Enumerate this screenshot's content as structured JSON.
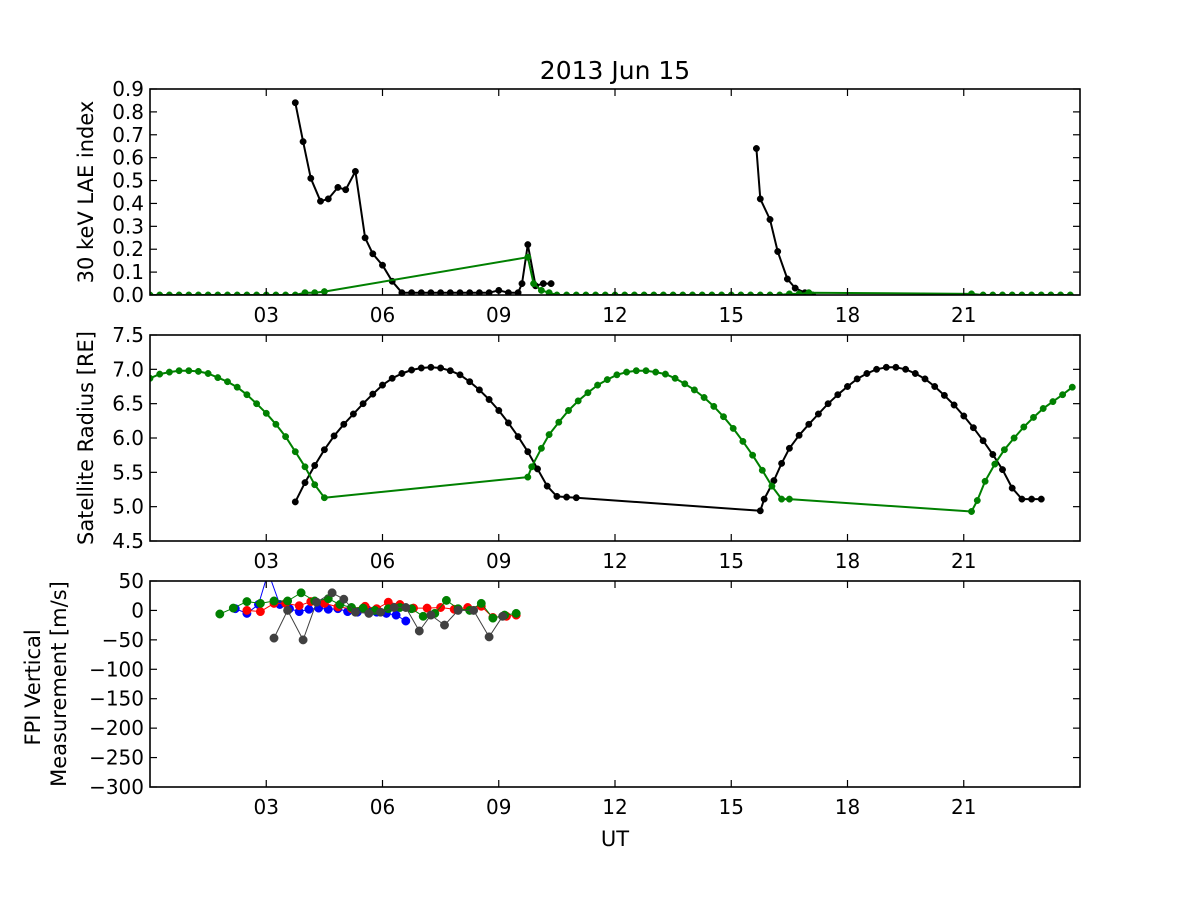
{
  "chart_data": [
    {
      "type": "line",
      "title": "2013 Jun 15",
      "xlabel": "",
      "ylabel": "30 keV LAE index",
      "xlim": [
        0,
        24
      ],
      "ylim": [
        0.0,
        0.9
      ],
      "xticks": [
        3,
        6,
        9,
        12,
        15,
        18,
        21
      ],
      "xtick_labels": [
        "03",
        "06",
        "09",
        "12",
        "15",
        "18",
        "21"
      ],
      "yticks": [
        0.0,
        0.1,
        0.2,
        0.3,
        0.4,
        0.5,
        0.6,
        0.7,
        0.8,
        0.9
      ],
      "ytick_labels": [
        "0.0",
        "0.1",
        "0.2",
        "0.3",
        "0.4",
        "0.5",
        "0.6",
        "0.7",
        "0.8",
        "0.9"
      ],
      "grid": false,
      "series": [
        {
          "color": "#000000",
          "segments": [
            {
              "x": [
                3.75,
                3.95,
                4.15,
                4.4,
                4.6,
                4.85,
                5.05,
                5.3,
                5.55,
                5.75,
                6.0,
                6.25,
                6.5,
                6.75,
                7.0,
                7.25,
                7.5,
                7.75,
                8.0,
                8.25,
                8.5,
                8.75,
                9.0,
                9.25,
                9.5,
                9.6,
                9.75,
                9.95,
                10.15,
                10.35
              ],
              "y": [
                0.84,
                0.67,
                0.51,
                0.41,
                0.42,
                0.47,
                0.46,
                0.54,
                0.25,
                0.18,
                0.13,
                0.06,
                0.01,
                0.01,
                0.01,
                0.01,
                0.01,
                0.01,
                0.01,
                0.01,
                0.01,
                0.01,
                0.02,
                0.01,
                0.01,
                0.05,
                0.22,
                0.04,
                0.05,
                0.05
              ]
            },
            {
              "x": [
                15.65,
                15.75,
                16.0,
                16.2,
                16.45,
                16.65,
                16.9,
                17.1
              ],
              "y": [
                0.64,
                0.42,
                0.33,
                0.19,
                0.07,
                0.03,
                0.01,
                0.0
              ]
            }
          ]
        },
        {
          "color": "#008000",
          "segments": [
            {
              "x": [
                0.0,
                0.25,
                0.5,
                0.75,
                1.0,
                1.25,
                1.5,
                1.75,
                2.0,
                2.25,
                2.5,
                2.75,
                3.0,
                3.25,
                3.5,
                3.75,
                4.0,
                4.25,
                4.5,
                9.75,
                9.9,
                10.1,
                10.3,
                10.5,
                10.75,
                11.0,
                11.25,
                11.5,
                11.75,
                12.0,
                12.25,
                12.5,
                12.75,
                13.0,
                13.25,
                13.5,
                13.75,
                14.0,
                14.25,
                14.5,
                14.75,
                15.0,
                15.25,
                15.5,
                15.75,
                16.0,
                16.25,
                16.5,
                16.75,
                17.0,
                21.2,
                21.5,
                21.75,
                22.0,
                22.25,
                22.5,
                22.75,
                23.0,
                23.25,
                23.5,
                23.75
              ],
              "y": [
                0.0,
                0.0,
                0.0,
                0.0,
                0.0,
                0.0,
                0.0,
                0.0,
                0.0,
                0.0,
                0.0,
                0.0,
                0.0,
                0.0,
                0.0,
                0.0,
                0.01,
                0.01,
                0.015,
                0.165,
                0.05,
                0.02,
                0.01,
                0.0,
                0.0,
                0.0,
                0.0,
                0.0,
                0.0,
                0.0,
                0.0,
                0.0,
                0.0,
                0.0,
                0.0,
                0.0,
                0.0,
                0.0,
                0.0,
                0.0,
                0.0,
                0.0,
                0.0,
                0.0,
                0.0,
                0.0,
                0.0,
                0.005,
                0.005,
                0.01,
                0.005,
                0.0,
                0.0,
                0.0,
                0.0,
                0.0,
                0.0,
                0.0,
                0.0,
                0.0,
                0.0
              ]
            }
          ]
        }
      ]
    },
    {
      "type": "line",
      "title": "",
      "xlabel": "",
      "ylabel": "Satellite Radius [RE]",
      "xlim": [
        0,
        24
      ],
      "ylim": [
        4.5,
        7.5
      ],
      "xticks": [
        3,
        6,
        9,
        12,
        15,
        18,
        21
      ],
      "xtick_labels": [
        "03",
        "06",
        "09",
        "12",
        "15",
        "18",
        "21"
      ],
      "yticks": [
        4.5,
        5.0,
        5.5,
        6.0,
        6.5,
        7.0,
        7.5
      ],
      "ytick_labels": [
        "4.5",
        "5.0",
        "5.5",
        "6.0",
        "6.5",
        "7.0",
        "7.5"
      ],
      "grid": false,
      "series": [
        {
          "color": "#000000",
          "segments": [
            {
              "x": [
                3.75,
                4.0,
                4.25,
                4.5,
                4.75,
                5.0,
                5.25,
                5.5,
                5.75,
                6.0,
                6.25,
                6.5,
                6.75,
                7.0,
                7.25,
                7.5,
                7.75,
                8.0,
                8.25,
                8.5,
                8.75,
                9.0,
                9.25,
                9.5,
                9.75,
                10.0,
                10.25,
                10.5,
                10.75,
                11.0,
                15.75,
                15.85,
                16.1,
                16.3,
                16.5,
                16.75,
                17.0,
                17.25,
                17.5,
                17.75,
                18.0,
                18.25,
                18.5,
                18.75,
                19.0,
                19.25,
                19.5,
                19.75,
                20.0,
                20.25,
                20.5,
                20.75,
                21.0,
                21.25,
                21.5,
                21.75,
                22.0,
                22.25,
                22.5,
                22.75,
                23.0
              ],
              "y": [
                5.07,
                5.35,
                5.6,
                5.83,
                6.03,
                6.2,
                6.35,
                6.5,
                6.64,
                6.77,
                6.87,
                6.94,
                6.99,
                7.02,
                7.03,
                7.02,
                6.98,
                6.92,
                6.82,
                6.7,
                6.56,
                6.4,
                6.22,
                6.02,
                5.8,
                5.55,
                5.3,
                5.15,
                5.14,
                5.13,
                4.94,
                5.11,
                5.38,
                5.63,
                5.85,
                6.04,
                6.2,
                6.35,
                6.5,
                6.63,
                6.75,
                6.86,
                6.94,
                7.0,
                7.03,
                7.03,
                7.0,
                6.94,
                6.86,
                6.75,
                6.62,
                6.48,
                6.32,
                6.15,
                5.96,
                5.76,
                5.54,
                5.27,
                5.11,
                5.11,
                5.11
              ]
            }
          ]
        },
        {
          "color": "#008000",
          "segments": [
            {
              "x": [
                0.0,
                0.25,
                0.5,
                0.75,
                1.0,
                1.25,
                1.5,
                1.75,
                2.0,
                2.25,
                2.5,
                2.75,
                3.0,
                3.25,
                3.5,
                3.75,
                4.0,
                4.25,
                4.5,
                9.75,
                9.85,
                10.1,
                10.3,
                10.55,
                10.8,
                11.05,
                11.3,
                11.55,
                11.8,
                12.05,
                12.3,
                12.55,
                12.8,
                13.05,
                13.3,
                13.55,
                13.8,
                14.05,
                14.3,
                14.55,
                14.8,
                15.05,
                15.3,
                15.55,
                15.8,
                16.05,
                16.3,
                16.5,
                21.2,
                21.35,
                21.55,
                21.8,
                22.05,
                22.3,
                22.55,
                22.8,
                23.05,
                23.3,
                23.55,
                23.8
              ],
              "y": [
                6.87,
                6.93,
                6.96,
                6.98,
                6.98,
                6.97,
                6.94,
                6.88,
                6.82,
                6.74,
                6.63,
                6.5,
                6.36,
                6.2,
                6.02,
                5.8,
                5.58,
                5.32,
                5.13,
                5.43,
                5.58,
                5.85,
                6.05,
                6.23,
                6.4,
                6.54,
                6.66,
                6.77,
                6.85,
                6.92,
                6.96,
                6.98,
                6.98,
                6.96,
                6.93,
                6.87,
                6.79,
                6.7,
                6.59,
                6.46,
                6.31,
                6.14,
                5.95,
                5.75,
                5.53,
                5.3,
                5.11,
                5.11,
                4.93,
                5.09,
                5.37,
                5.62,
                5.83,
                6.0,
                6.16,
                6.3,
                6.43,
                6.53,
                6.63,
                6.74
              ]
            }
          ]
        }
      ]
    },
    {
      "type": "line",
      "title": "",
      "xlabel": "UT",
      "ylabel": "FPI Vertical\nMeasurement [m/s]",
      "xlim": [
        0,
        24
      ],
      "ylim": [
        -300,
        50
      ],
      "xticks": [
        3,
        6,
        9,
        12,
        15,
        18,
        21
      ],
      "xtick_labels": [
        "03",
        "06",
        "09",
        "12",
        "15",
        "18",
        "21"
      ],
      "yticks": [
        -300,
        -250,
        -200,
        -150,
        -100,
        -50,
        0,
        50
      ],
      "ytick_labels": [
        "−300",
        "−250",
        "−200",
        "−150",
        "−100",
        "−50",
        "0",
        "50"
      ],
      "grid": false,
      "series": [
        {
          "color": "#0000ff",
          "segments": [
            {
              "x": [
                2.2,
                2.5,
                2.8,
                3.05,
                3.35,
                3.6,
                3.85,
                4.1,
                4.35,
                4.6,
                4.85,
                5.1,
                5.35,
                5.6,
                5.85,
                6.1,
                6.35,
                6.6
              ],
              "y": [
                3,
                -5,
                10,
                65,
                10,
                3,
                -2,
                2,
                4,
                2,
                3,
                -2,
                -3,
                2,
                -3,
                -5,
                -8,
                -18
              ]
            }
          ]
        },
        {
          "color": "#ff0000",
          "segments": [
            {
              "x": [
                2.5,
                2.85,
                3.2,
                3.5,
                3.85,
                4.15,
                4.5,
                4.85,
                5.2,
                5.55,
                5.85,
                6.15,
                6.45,
                6.8,
                7.15,
                7.5,
                7.85,
                8.2,
                8.55,
                8.85,
                9.2,
                9.45
              ],
              "y": [
                0,
                -2,
                12,
                12,
                8,
                15,
                12,
                6,
                3,
                7,
                3,
                14,
                10,
                4,
                4,
                5,
                2,
                5,
                7,
                -12,
                -10,
                -8
              ]
            }
          ]
        },
        {
          "color": "#008000",
          "segments": [
            {
              "x": [
                1.8,
                2.15,
                2.5,
                2.85,
                3.2,
                3.55,
                3.9,
                4.25,
                4.6,
                4.9,
                5.2,
                5.5,
                5.8,
                6.15,
                6.45,
                6.75,
                7.05,
                7.35,
                7.65,
                7.95,
                8.25,
                8.55,
                8.85,
                9.15,
                9.45
              ],
              "y": [
                -6,
                4,
                15,
                12,
                16,
                16,
                30,
                16,
                20,
                10,
                5,
                4,
                0,
                3,
                5,
                3,
                -10,
                -5,
                17,
                3,
                0,
                12,
                -13,
                -8,
                -5
              ]
            }
          ]
        },
        {
          "color": "#404040",
          "segments": [
            {
              "x": [
                3.2,
                3.55,
                3.95,
                4.3,
                4.7,
                5.0,
                5.3,
                5.65,
                5.95,
                6.3,
                6.6,
                6.95,
                7.25,
                7.6,
                7.95,
                8.35,
                8.75,
                9.1
              ],
              "y": [
                -47,
                0,
                -50,
                14,
                30,
                19,
                -3,
                -5,
                -3,
                5,
                5,
                -35,
                -8,
                -25,
                0,
                0,
                -45,
                -10
              ]
            }
          ]
        }
      ]
    }
  ]
}
